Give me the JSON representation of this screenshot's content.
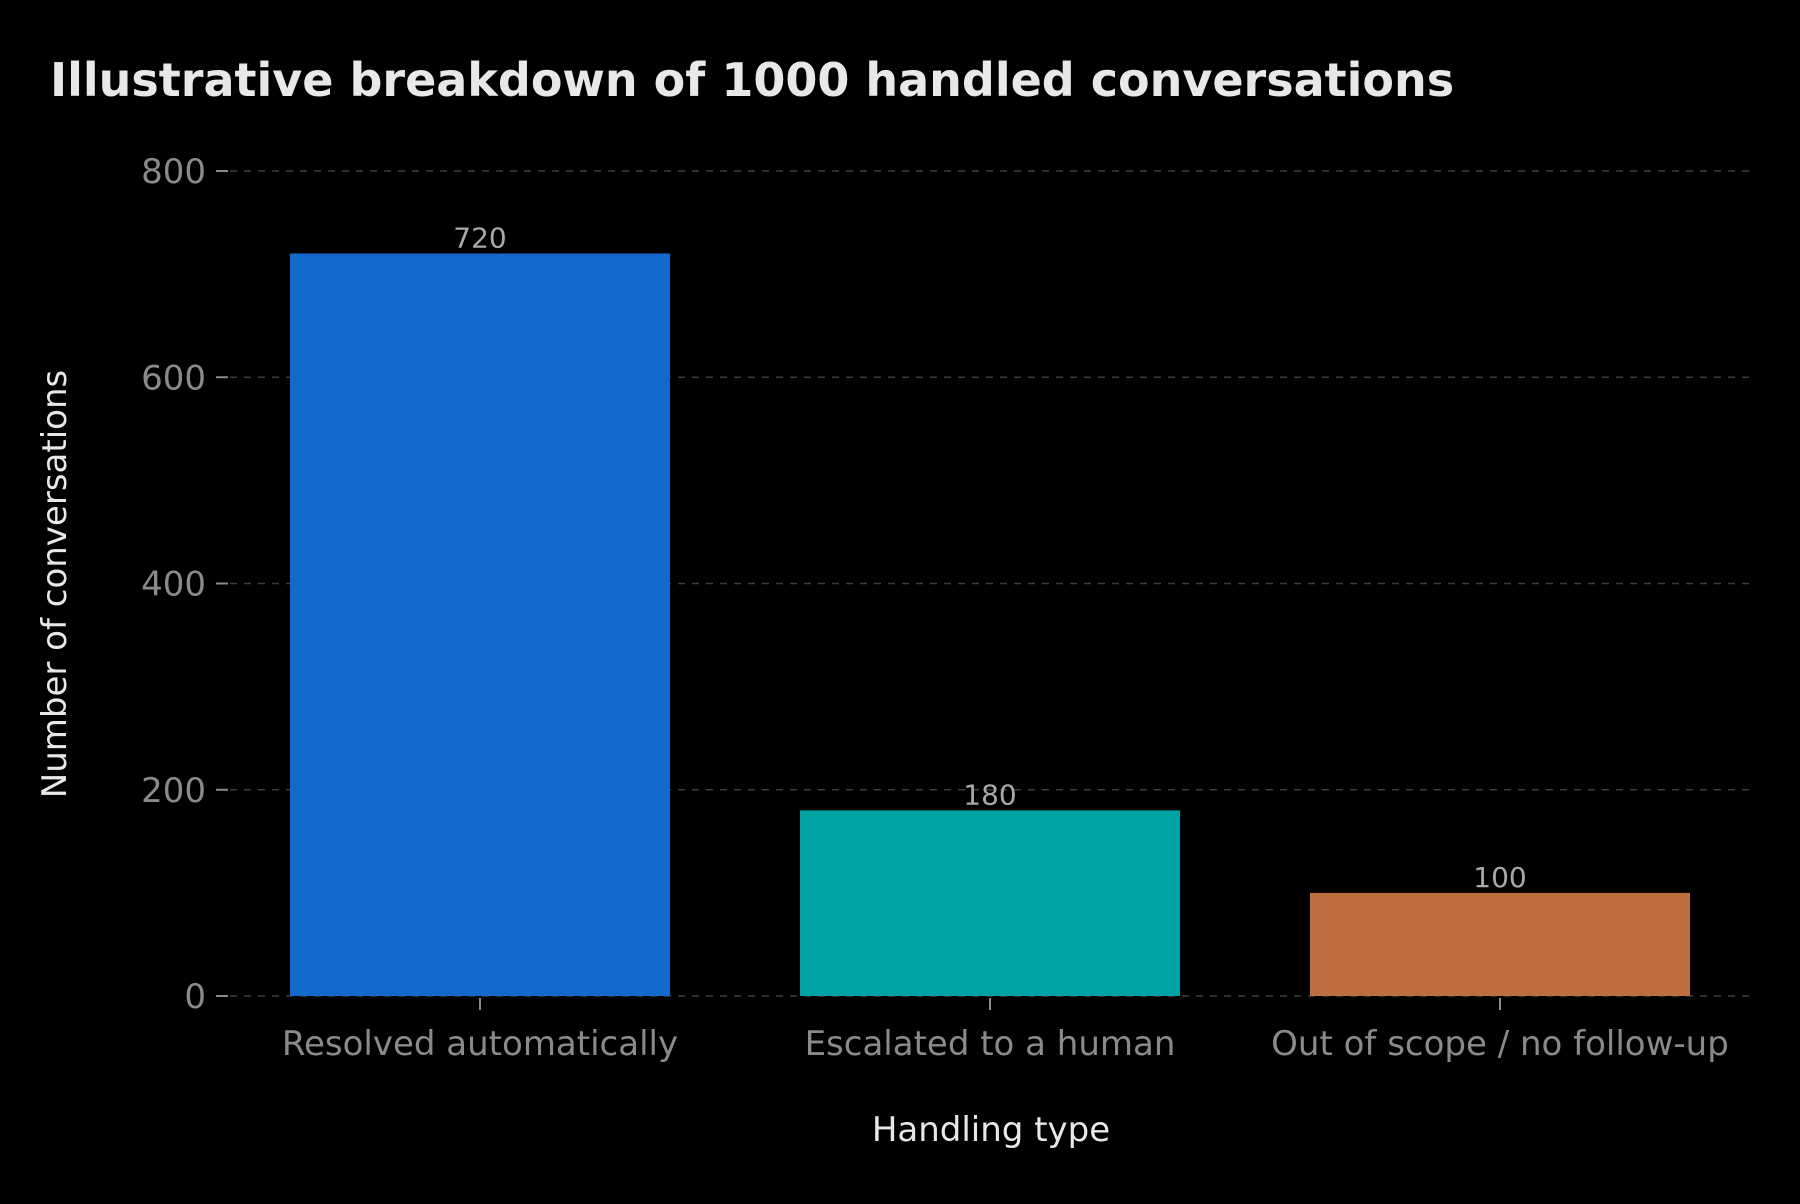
{
  "chart_data": {
    "type": "bar",
    "title": "Illustrative breakdown of 1000 handled conversations",
    "xlabel": "Handling type",
    "ylabel": "Number of conversations",
    "categories": [
      "Resolved automatically",
      "Escalated to a human",
      "Out of scope / no follow-up"
    ],
    "values": [
      720,
      180,
      100
    ],
    "value_labels": [
      "720",
      "180",
      "100"
    ],
    "colors": [
      "#1368cc",
      "#00a3a3",
      "#be6e3e"
    ],
    "ylim": [
      0,
      800
    ],
    "yticks": [
      0,
      200,
      400,
      600,
      800
    ],
    "ytick_labels": [
      "0",
      "200",
      "400",
      "600",
      "800"
    ],
    "grid": true,
    "grid_axis": "y",
    "legend": "none"
  }
}
